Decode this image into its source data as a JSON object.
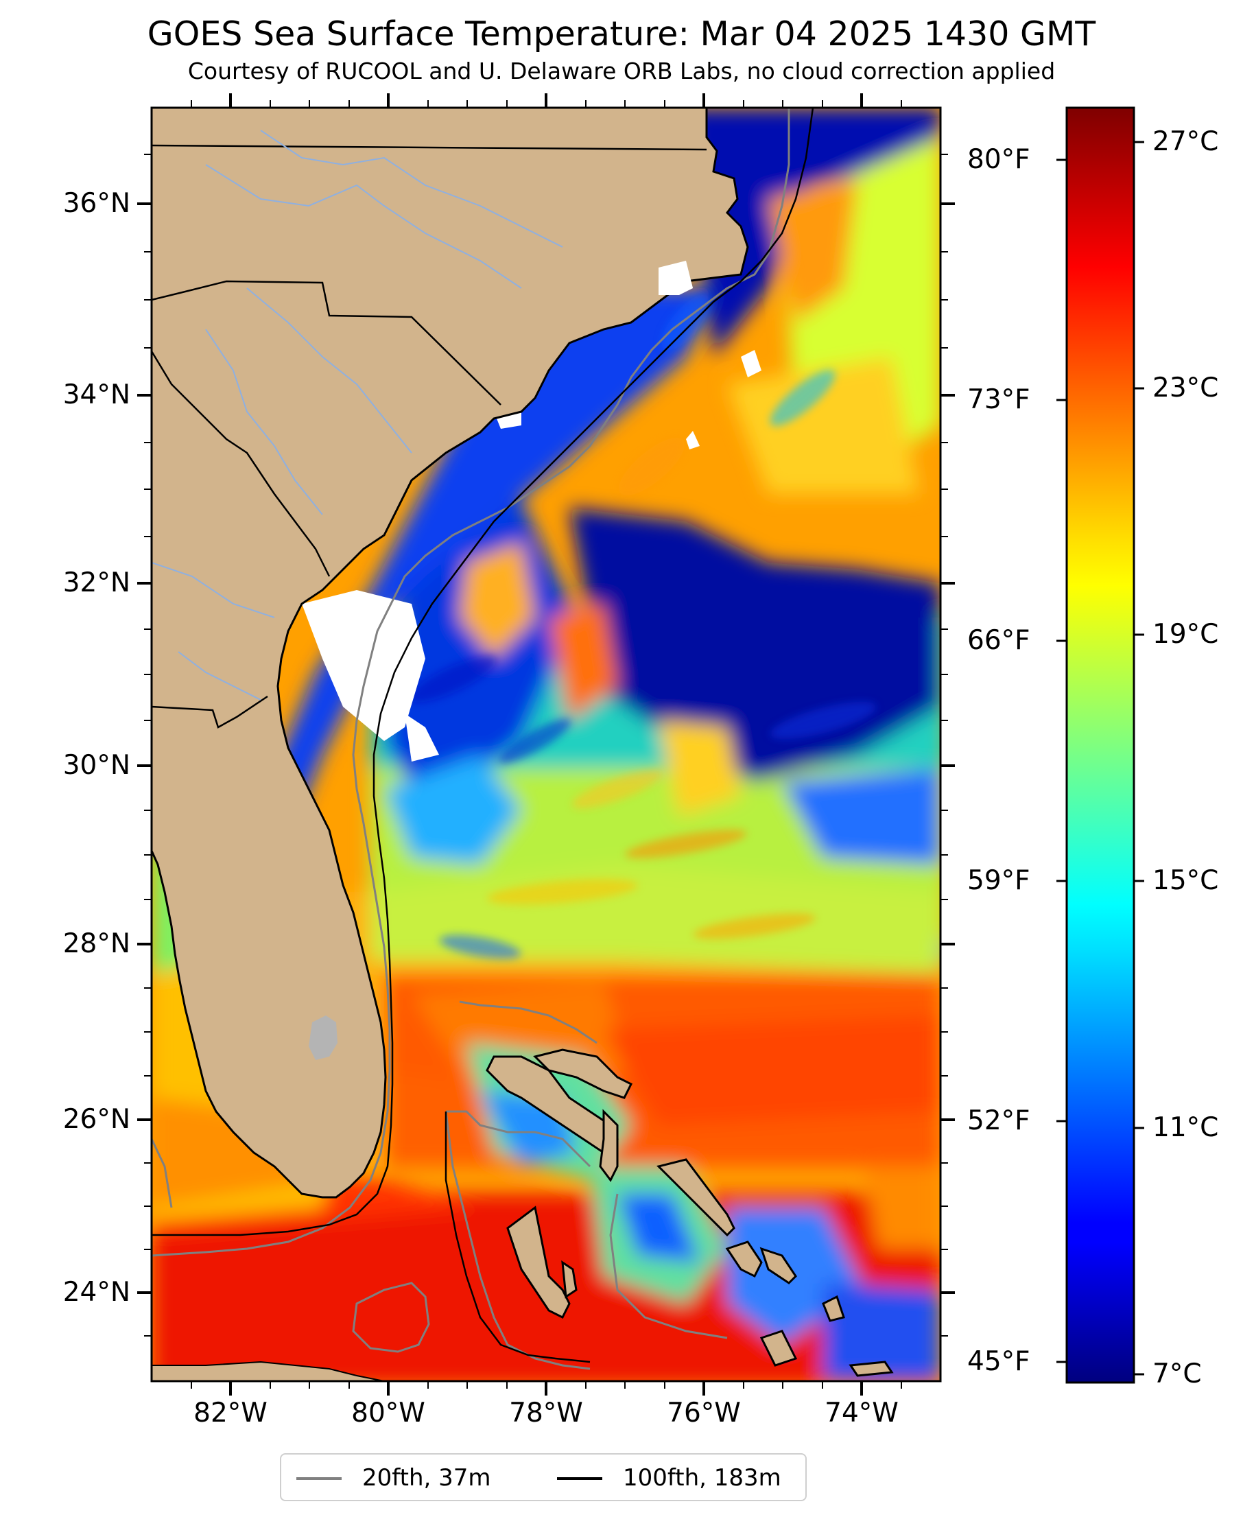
{
  "title": "GOES Sea Surface Temperature: Mar 04 2025 1430 GMT",
  "subtitle": "Courtesy of RUCOOL and U. Delaware ORB Labs, no cloud correction applied",
  "map": {
    "lon_range": [
      -83,
      -73
    ],
    "lat_range": [
      23.1,
      37.0
    ],
    "lat_ticks": [
      "36°N",
      "34°N",
      "32°N",
      "30°N",
      "28°N",
      "26°N",
      "24°N"
    ],
    "lon_ticks": [
      "82°W",
      "80°W",
      "78°W",
      "76°W",
      "74°W"
    ],
    "land_color": "#d2b48c",
    "no_data_color": "#ffffff",
    "isobath_20_color": "#808080",
    "isobath_100_color": "#000000"
  },
  "fahrenheit_ticks": [
    "80°F",
    "73°F",
    "66°F",
    "59°F",
    "52°F",
    "45°F"
  ],
  "colorbar": {
    "min_c": 7,
    "max_c": 27.6,
    "ticks": [
      "27°C",
      "23°C",
      "19°C",
      "15°C",
      "11°C",
      "7°C"
    ],
    "colormap": "jet"
  },
  "legend": {
    "items": [
      {
        "label": "20fth, 37m",
        "color": "#808080"
      },
      {
        "label": "100fth, 183m",
        "color": "#000000"
      }
    ]
  }
}
